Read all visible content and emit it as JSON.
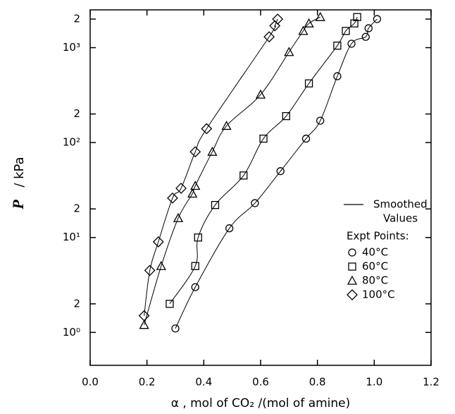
{
  "chart_data": {
    "type": "scatter",
    "x_label": "α , mol of CO₂ /(mol of amine)",
    "y_label_symbol": "P",
    "y_label_unit": "/ kPa",
    "log_y": true,
    "xlim": [
      0,
      1.2
    ],
    "xticks": [
      {
        "value": 0,
        "label": "0.0"
      },
      0.2,
      0.4,
      0.6,
      0.8,
      {
        "value": 1,
        "label": "1.0"
      },
      1.2
    ],
    "ylim": [
      0.45,
      2500
    ],
    "yticks": [
      {
        "value": 1,
        "label": "10⁰"
      },
      2,
      {
        "value": 10,
        "label": "10¹"
      },
      {
        "value": 20,
        "label": "2"
      },
      {
        "value": 100,
        "label": "10²"
      },
      {
        "value": 200,
        "label": "2"
      },
      {
        "value": 1000,
        "label": "10³"
      },
      {
        "value": 2000,
        "label": "2"
      }
    ],
    "smoothed_label": [
      "Smoothed",
      "Values"
    ],
    "legend_title": "Expt Points:",
    "color": "#000000",
    "series": [
      {
        "name": "40°C",
        "marker": "circle",
        "x": [
          0.3,
          0.37,
          0.49,
          0.58,
          0.67,
          0.76,
          0.81,
          0.87,
          0.92,
          0.97,
          0.98,
          1.01
        ],
        "values": [
          1.1,
          3.0,
          12.5,
          23,
          50,
          110,
          170,
          500,
          1100,
          1300,
          1600,
          2000
        ]
      },
      {
        "name": "60°C",
        "marker": "square",
        "x": [
          0.28,
          0.37,
          0.38,
          0.44,
          0.54,
          0.61,
          0.69,
          0.77,
          0.87,
          0.9,
          0.93,
          0.94
        ],
        "values": [
          2.0,
          5.0,
          10,
          22,
          45,
          110,
          190,
          420,
          1050,
          1500,
          1800,
          2100
        ]
      },
      {
        "name": "80°C",
        "marker": "triangle",
        "x": [
          0.19,
          0.25,
          0.31,
          0.36,
          0.37,
          0.43,
          0.48,
          0.6,
          0.7,
          0.75,
          0.77,
          0.81
        ],
        "values": [
          1.2,
          5.0,
          16,
          29,
          35,
          80,
          150,
          320,
          900,
          1500,
          1800,
          2100
        ]
      },
      {
        "name": "100°C",
        "marker": "diamond",
        "x": [
          0.19,
          0.21,
          0.24,
          0.29,
          0.32,
          0.37,
          0.41,
          0.63,
          0.65,
          0.66
        ],
        "values": [
          1.5,
          4.5,
          9.0,
          26,
          33,
          80,
          140,
          1300,
          1700,
          2000
        ]
      }
    ]
  }
}
